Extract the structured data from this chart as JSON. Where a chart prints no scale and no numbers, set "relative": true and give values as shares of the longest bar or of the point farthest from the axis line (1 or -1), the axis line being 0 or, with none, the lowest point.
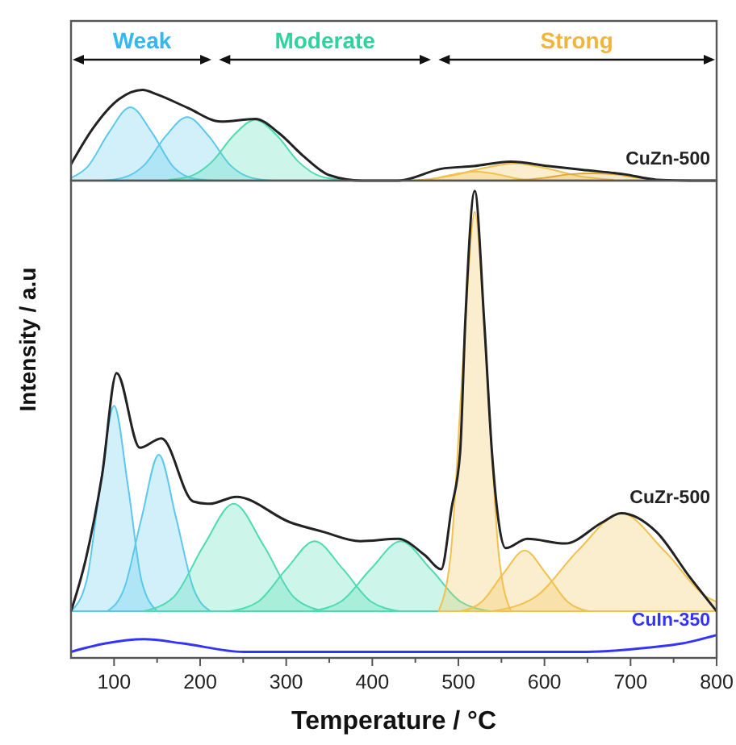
{
  "chart_data": [
    {
      "type": "line",
      "relative": true,
      "xlim": [
        50,
        800
      ],
      "annotations": [
        "Weak",
        "Moderate",
        "Strong"
      ],
      "series": [
        {
          "type": "area",
          "color": "#5bc8ee",
          "x": [
            50,
            69,
            94,
            119,
            144,
            169,
            194,
            219
          ],
          "values": [
            0.03,
            0.15,
            0.53,
            0.81,
            0.53,
            0.15,
            0.02,
            0
          ]
        },
        {
          "type": "area",
          "color": "#5bc8ee",
          "x": [
            85,
            110,
            135,
            160,
            185,
            210,
            235,
            260,
            285
          ],
          "values": [
            0,
            0.03,
            0.17,
            0.49,
            0.7,
            0.49,
            0.17,
            0.03,
            0
          ]
        },
        {
          "type": "area",
          "color": "#4ddbb0",
          "x": [
            164,
            189,
            214,
            239,
            264,
            289,
            314,
            339,
            364,
            389
          ],
          "values": [
            0.01,
            0.05,
            0.21,
            0.5,
            0.67,
            0.5,
            0.21,
            0.05,
            0.01,
            0
          ]
        },
        {
          "type": "area",
          "color": "#f2c14e",
          "x": [
            440,
            470,
            495,
            520,
            545,
            570,
            600
          ],
          "values": [
            0,
            0.02,
            0.07,
            0.1,
            0.07,
            0.02,
            0
          ]
        },
        {
          "type": "area",
          "color": "#f2c14e",
          "x": [
            450,
            490,
            530,
            565,
            600,
            640,
            680
          ],
          "values": [
            0,
            0.05,
            0.14,
            0.19,
            0.14,
            0.05,
            0.01
          ]
        },
        {
          "type": "area",
          "color": "#e0a830",
          "x": [
            560,
            600,
            630,
            655,
            680,
            710,
            750
          ],
          "values": [
            0,
            0.03,
            0.07,
            0.08,
            0.07,
            0.03,
            0
          ]
        },
        {
          "name": "CuZn-500",
          "color": "#222222",
          "x": [
            50,
            75,
            106,
            133,
            150,
            186,
            224,
            264,
            292,
            320,
            350,
            388,
            430,
            480,
            518,
            561,
            605,
            643,
            693,
            730,
            770,
            800
          ],
          "values": [
            0.18,
            0.57,
            0.9,
            1,
            0.95,
            0.8,
            0.65,
            0.68,
            0.52,
            0.27,
            0.06,
            0,
            0,
            0.13,
            0.16,
            0.21,
            0.16,
            0.12,
            0.07,
            0.01,
            0,
            0
          ]
        }
      ]
    },
    {
      "type": "line",
      "relative": true,
      "xlim": [
        50,
        800
      ],
      "xlabel": "Temperature / °C",
      "ylabel": "Intensity / a.u",
      "xticks": [
        100,
        {
          "value": 150,
          "label": null
        },
        200,
        {
          "value": 250,
          "label": null
        },
        300,
        {
          "value": 350,
          "label": null
        },
        400,
        {
          "value": 450,
          "label": null
        },
        500,
        {
          "value": 550,
          "label": null
        },
        600,
        {
          "value": 650,
          "label": null
        },
        700,
        {
          "value": 750,
          "label": null
        },
        800
      ],
      "series": [
        {
          "type": "area",
          "color": "#5bc8ee",
          "x": [
            50,
            68,
            84,
            100,
            116,
            132,
            150
          ],
          "values": [
            0.1,
            0.165,
            0.37,
            0.54,
            0.37,
            0.165,
            0.1
          ]
        },
        {
          "type": "area",
          "color": "#5bc8ee",
          "x": [
            92,
            112,
            132,
            152,
            172,
            192,
            212
          ],
          "values": [
            0.1,
            0.15,
            0.3,
            0.435,
            0.3,
            0.15,
            0.1
          ]
        },
        {
          "type": "area",
          "color": "#4ddbb0",
          "x": [
            134,
            169,
            204,
            239,
            274,
            309,
            344
          ],
          "values": [
            0.1,
            0.13,
            0.24,
            0.33,
            0.24,
            0.13,
            0.1
          ]
        },
        {
          "type": "area",
          "color": "#4ddbb0",
          "x": [
            234,
            267,
            300,
            333,
            366,
            399,
            432
          ],
          "values": [
            0.1,
            0.12,
            0.19,
            0.25,
            0.19,
            0.12,
            0.1
          ]
        },
        {
          "type": "area",
          "color": "#4ddbb0",
          "x": [
            328,
            363,
            398,
            433,
            468,
            503,
            538
          ],
          "values": [
            0.1,
            0.12,
            0.19,
            0.25,
            0.19,
            0.12,
            0.1
          ]
        },
        {
          "type": "area",
          "color": "#f2c14e",
          "x": [
            477,
            491,
            505,
            519,
            533,
            547,
            561
          ],
          "values": [
            0.1,
            0.22,
            0.62,
            0.955,
            0.62,
            0.22,
            0.1
          ]
        },
        {
          "type": "area",
          "color": "#f2c14e",
          "x": [
            502,
            527,
            552,
            577,
            602,
            627,
            652
          ],
          "values": [
            0.1,
            0.12,
            0.18,
            0.23,
            0.18,
            0.12,
            0.1
          ]
        },
        {
          "type": "area",
          "color": "#f2c14e",
          "x": [
            539,
            589,
            639,
            689,
            739,
            789,
            800
          ],
          "values": [
            0.1,
            0.13,
            0.23,
            0.31,
            0.23,
            0.13,
            0.12
          ]
        },
        {
          "name": "CuZr-500",
          "color": "#222222",
          "x": [
            50,
            67,
            86,
            103,
            130,
            155,
            192,
            211,
            242,
            305,
            343,
            386,
            430,
            461,
            480,
            492,
            502,
            508,
            519,
            530,
            539,
            555,
            580,
            624,
            667,
            689,
            730,
            768,
            800
          ],
          "values": [
            0.1,
            0.21,
            0.39,
            0.61,
            0.45,
            0.47,
            0.335,
            0.33,
            0.345,
            0.29,
            0.27,
            0.25,
            0.255,
            0.22,
            0.19,
            0.32,
            0.44,
            0.72,
            1,
            0.72,
            0.44,
            0.235,
            0.255,
            0.245,
            0.29,
            0.31,
            0.27,
            0.175,
            0.1
          ]
        },
        {
          "name": "CuIn-350",
          "color": "#3333ff",
          "x": [
            50,
            90,
            135,
            180,
            250,
            350,
            500,
            650,
            720,
            760,
            800
          ],
          "values": [
            0.013,
            0.031,
            0.04,
            0.031,
            0.013,
            0.013,
            0.013,
            0.013,
            0.022,
            0.031,
            0.049
          ]
        }
      ]
    }
  ]
}
